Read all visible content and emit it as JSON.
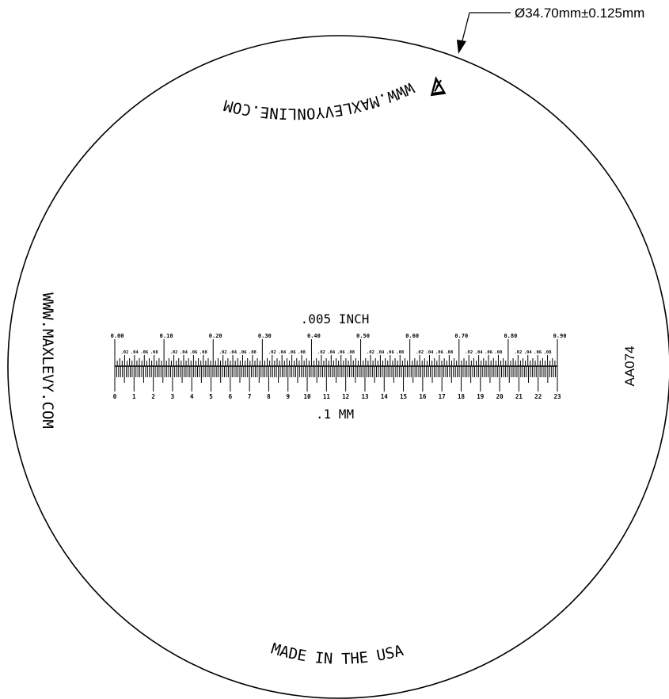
{
  "dimension_callout": "Ø34.70mm±0.125mm",
  "top_url": "WWW.MAXLEVYONLINE.COM",
  "left_url": "WWW.MAXLEVY.COM",
  "part_number": "AA074",
  "footer_text": "MADE IN THE USA",
  "inch_scale": {
    "unit_label": ".005 INCH",
    "major_labels": [
      "0.00",
      "0.10",
      "0.20",
      "0.30",
      "0.40",
      "0.50",
      "0.60",
      "0.70",
      "0.80",
      "0.90"
    ],
    "minor_labels": [
      ".02",
      ".04",
      ".06",
      ".08"
    ],
    "subdivisions_per_major": 20
  },
  "mm_scale": {
    "unit_label": ".1 MM",
    "major_labels": [
      "0",
      "1",
      "2",
      "3",
      "4",
      "5",
      "6",
      "7",
      "8",
      "9",
      "10",
      "11",
      "12",
      "13",
      "14",
      "15",
      "16",
      "17",
      "18",
      "19",
      "20",
      "21",
      "22",
      "23"
    ],
    "subdivisions_per_major": 10
  },
  "colors": {
    "ink": "#000000",
    "background": "#ffffff"
  },
  "icons": {
    "logo": "max-levy-logo-icon",
    "leader_arrow": "arrow-icon"
  }
}
